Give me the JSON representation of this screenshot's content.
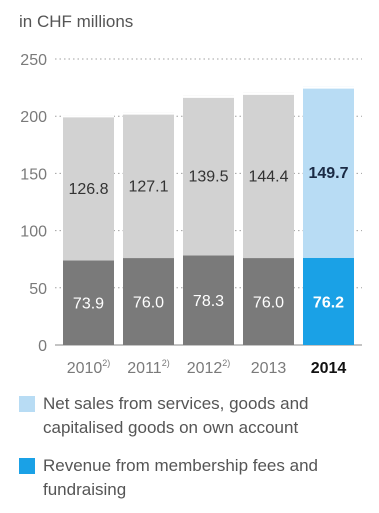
{
  "chart_data": {
    "type": "bar",
    "stacked": true,
    "unit_label": "in CHF millions",
    "categories": [
      "2010",
      "2011",
      "2012",
      "2013",
      "2014"
    ],
    "category_footnotes": [
      "2)",
      "2)",
      "2)",
      "",
      ""
    ],
    "highlight_category": "2014",
    "ylim": [
      0,
      250
    ],
    "yticks": [
      0,
      50,
      100,
      150,
      200,
      250
    ],
    "grid": "dotted",
    "series": [
      {
        "name": "Revenue from membership fees and fundraising",
        "values": [
          73.9,
          76.0,
          78.3,
          76.0,
          76.2
        ],
        "color": "#7a7a7a",
        "highlight_color": "#1aa1e6"
      },
      {
        "name": "Net sales from services, goods and capitalised goods on own account",
        "values": [
          126.8,
          127.1,
          139.5,
          144.4,
          149.7
        ],
        "color": "#d2d2d2",
        "highlight_color": "#b8dcf4"
      }
    ],
    "legend": [
      {
        "label": "Net sales from services, goods and capitalised goods on own account",
        "color": "#b8dcf4"
      },
      {
        "label": "Revenue from membership fees and fundraising",
        "color": "#1aa1e6"
      }
    ],
    "legend_position": "bottom"
  }
}
